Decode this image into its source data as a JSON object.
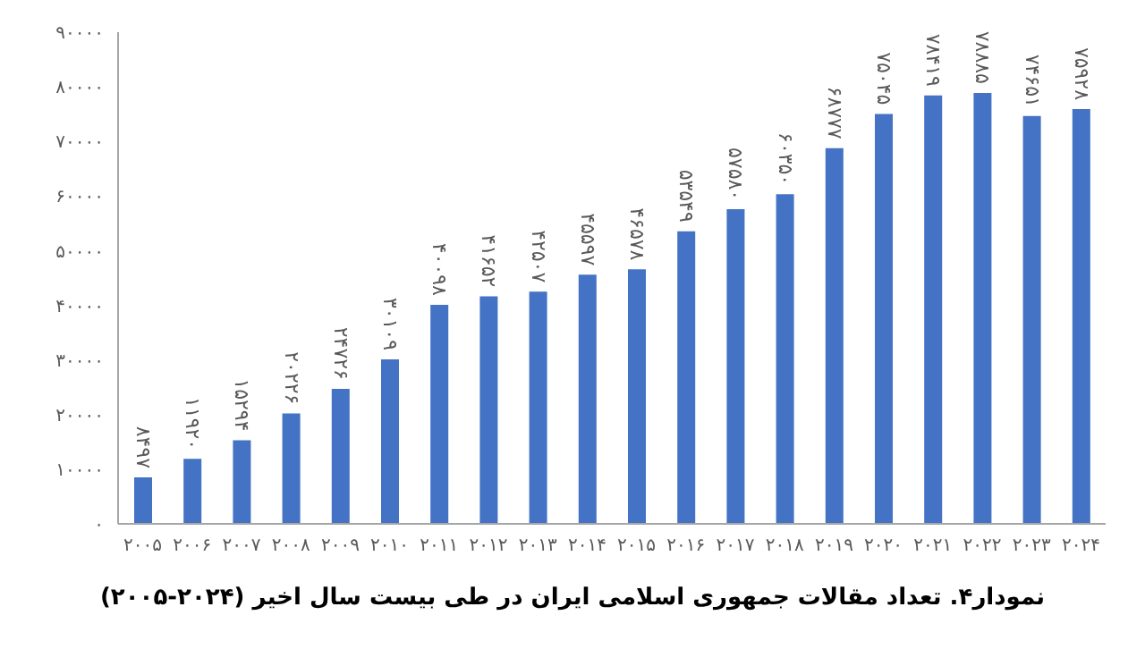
{
  "chart_data": {
    "type": "bar",
    "title": "نمودار۴. تعداد مقالات جمهوری اسلامی ایران در طی بیست سال اخیر (۲۰۲۴-۲۰۰۵)",
    "categories": [
      "۲۰۰۵",
      "۲۰۰۶",
      "۲۰۰۷",
      "۲۰۰۸",
      "۲۰۰۹",
      "۲۰۱۰",
      "۲۰۱۱",
      "۲۰۱۲",
      "۲۰۱۳",
      "۲۰۱۴",
      "۲۰۱۵",
      "۲۰۱۶",
      "۲۰۱۷",
      "۲۰۱۸",
      "۲۰۱۹",
      "۲۰۲۰",
      "۲۰۲۱",
      "۲۰۲۲",
      "۲۰۲۳",
      "۲۰۲۴"
    ],
    "values": [
      8497,
      11920,
      15294,
      20226,
      24726,
      30109,
      40098,
      41652,
      42507,
      45597,
      46578,
      53549,
      57580,
      60350,
      68777,
      75045,
      78419,
      78885,
      74651,
      75928
    ],
    "value_labels": [
      "۸۴۹۷",
      "۱۱۹۲۰",
      "۱۵۲۹۴",
      "۲۰۲۲۶",
      "۲۴۷۲۶",
      "۳۰۱۰۹",
      "۴۰۰۹۸",
      "۴۱۶۵۲",
      "۴۲۵۰۷",
      "۴۵۵۹۷",
      "۴۶۵۷۸",
      "۵۳۵۴۹",
      "۵۷۵۸۰",
      "۶۰۳۵۰",
      "۶۸۷۷۷",
      "۷۵۰۴۵",
      "۷۸۴۱۹",
      "۷۸۸۸۵",
      "۷۴۶۵۱",
      "۷۵۹۲۸"
    ],
    "color": "#4472c4",
    "ylim": [
      0,
      90000
    ],
    "yticks": [
      {
        "value": 0,
        "label": "۰"
      },
      {
        "value": 10000,
        "label": "۱۰۰۰۰"
      },
      {
        "value": 20000,
        "label": "۲۰۰۰۰"
      },
      {
        "value": 30000,
        "label": "۳۰۰۰۰"
      },
      {
        "value": 40000,
        "label": "۴۰۰۰۰"
      },
      {
        "value": 50000,
        "label": "۵۰۰۰۰"
      },
      {
        "value": 60000,
        "label": "۶۰۰۰۰"
      },
      {
        "value": 70000,
        "label": "۷۰۰۰۰"
      },
      {
        "value": 80000,
        "label": "۸۰۰۰۰"
      },
      {
        "value": 90000,
        "label": "۹۰۰۰۰"
      }
    ],
    "grid": false,
    "legend": false
  }
}
